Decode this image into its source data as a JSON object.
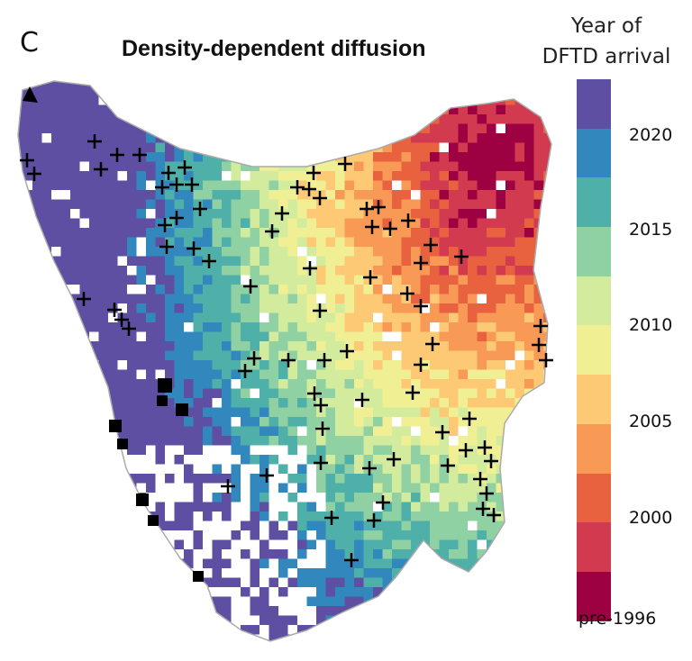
{
  "panel_label": "C",
  "title": "Density-dependent diffusion",
  "legend": {
    "title_line1": "Year of",
    "title_line2": "DFTD arrival",
    "colors": [
      "#5e4fa2",
      "#3288bd",
      "#4fb0a9",
      "#90d1a4",
      "#d2eb9c",
      "#f0ef93",
      "#fdc974",
      "#f89a56",
      "#e8623f",
      "#d13a4f",
      "#9e0142"
    ],
    "labels": [
      "2020",
      "2015",
      "2010",
      "2005",
      "2000",
      "pre-1996"
    ]
  },
  "markers": {
    "cross": "+ marker",
    "square": "black square marker"
  }
}
